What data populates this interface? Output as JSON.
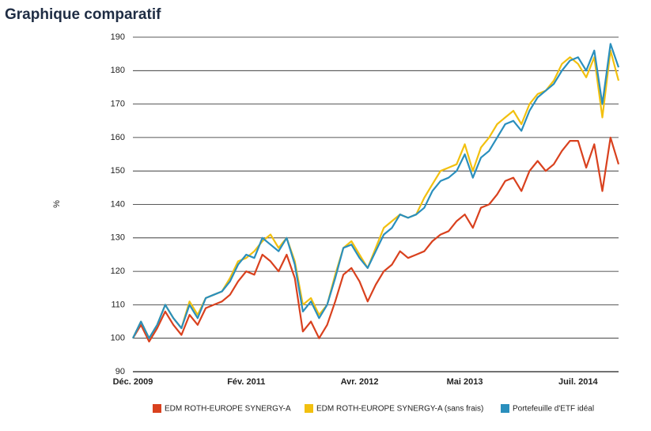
{
  "chart_data": {
    "type": "line",
    "title": "Graphique comparatif",
    "y_label": "%",
    "categories": [
      "Déc. 2009",
      null,
      null,
      null,
      null,
      null,
      null,
      null,
      null,
      null,
      null,
      null,
      null,
      null,
      "Fév. 2011",
      null,
      null,
      null,
      null,
      null,
      null,
      null,
      null,
      null,
      null,
      null,
      null,
      null,
      "Avr. 2012",
      null,
      null,
      null,
      null,
      null,
      null,
      null,
      null,
      null,
      null,
      null,
      null,
      "Mai 2013",
      null,
      null,
      null,
      null,
      null,
      null,
      null,
      null,
      null,
      null,
      null,
      null,
      null,
      "Juil. 2014",
      null,
      null,
      null,
      null,
      null
    ],
    "series": [
      {
        "name": "EDM ROTH-EUROPE SYNERGY-A",
        "color": "#d9411e",
        "values": [
          100,
          104,
          99,
          103,
          108,
          104,
          101,
          107,
          104,
          109,
          110,
          111,
          113,
          117,
          120,
          119,
          125,
          123,
          120,
          125,
          118,
          102,
          105,
          100,
          104,
          111,
          119,
          121,
          117,
          111,
          116,
          120,
          122,
          126,
          124,
          125,
          126,
          129,
          131,
          132,
          135,
          137,
          133,
          139,
          140,
          143,
          147,
          148,
          144,
          150,
          153,
          150,
          152,
          156,
          159,
          159,
          151,
          158,
          144,
          160,
          152
        ]
      },
      {
        "name": "EDM ROTH-EUROPE SYNERGY-A (sans frais)",
        "color": "#f2c00f",
        "values": [
          100,
          105,
          100,
          104,
          110,
          106,
          103,
          111,
          107,
          112,
          113,
          114,
          118,
          123,
          124,
          126,
          129,
          131,
          127,
          130,
          123,
          110,
          112,
          107,
          110,
          119,
          127,
          129,
          125,
          121,
          127,
          133,
          135,
          137,
          136,
          137,
          142,
          146,
          150,
          151,
          152,
          158,
          150,
          157,
          160,
          164,
          166,
          168,
          164,
          170,
          173,
          174,
          177,
          182,
          184,
          182,
          178,
          184,
          166,
          186,
          177
        ]
      },
      {
        "name": "Portefeuille d'ETF idéal",
        "color": "#2a8fbd",
        "values": [
          100,
          105,
          100,
          104,
          110,
          106,
          103,
          110,
          106,
          112,
          113,
          114,
          117,
          122,
          125,
          124,
          130,
          128,
          126,
          130,
          122,
          108,
          111,
          106,
          110,
          118,
          127,
          128,
          124,
          121,
          126,
          131,
          133,
          137,
          136,
          137,
          139,
          144,
          147,
          148,
          150,
          155,
          148,
          154,
          156,
          160,
          164,
          165,
          162,
          168,
          172,
          174,
          176,
          180,
          183,
          184,
          180,
          186,
          170,
          188,
          181
        ]
      }
    ],
    "ylim": [
      90,
      190
    ],
    "yticks": [
      90,
      100,
      110,
      120,
      130,
      140,
      150,
      160,
      170,
      180,
      190
    ],
    "grid": true
  }
}
